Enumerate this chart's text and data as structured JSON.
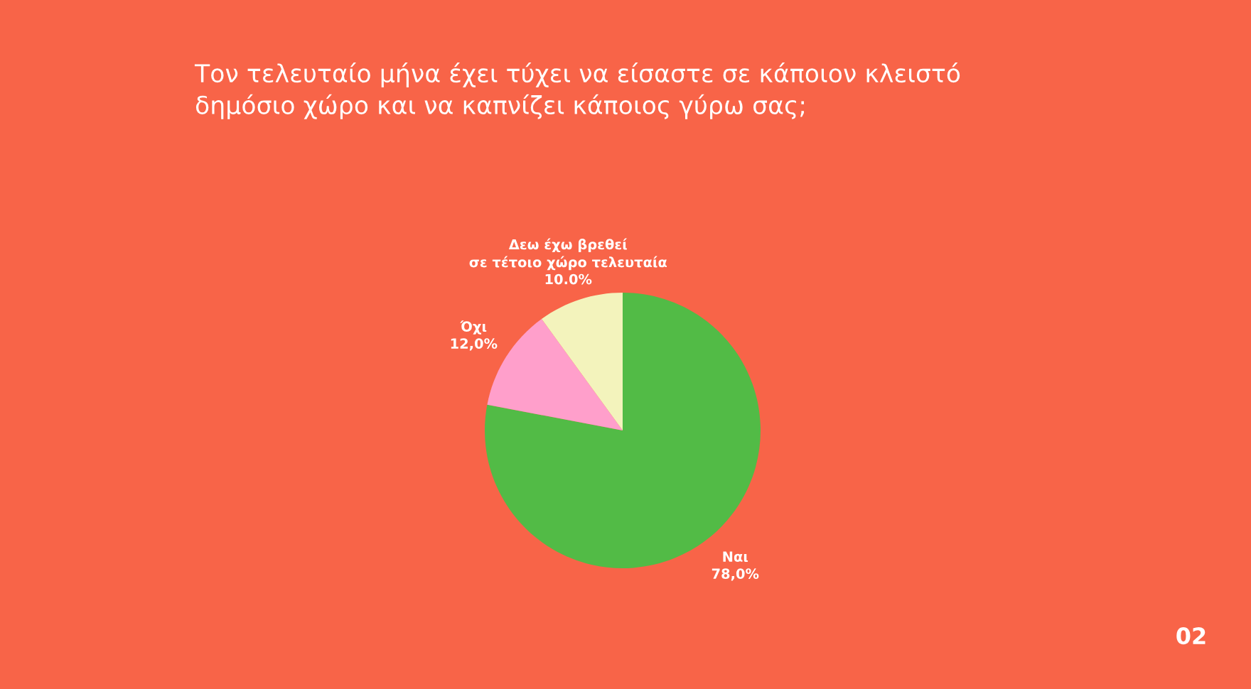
{
  "chart_data": {
    "type": "pie",
    "title": "Τον τελευταίο μήνα έχει τύχει να είσαστε σε κάποιον κλειστό\nδημόσιο χώρο και να καπνίζει κάποιος γύρω σας;",
    "categories": [
      "Ναι",
      "Όχι",
      "Δεω έχω βρεθεί\nσε τέτοιο χώρο τελευταία"
    ],
    "values": [
      78.0,
      12.0,
      10.0
    ],
    "value_labels": [
      "78,0%",
      "12,0%",
      "10.0%"
    ],
    "colors": [
      "#52bb46",
      "#ff9fcb",
      "#f3f3bc"
    ],
    "annotations": [
      "02"
    ]
  }
}
